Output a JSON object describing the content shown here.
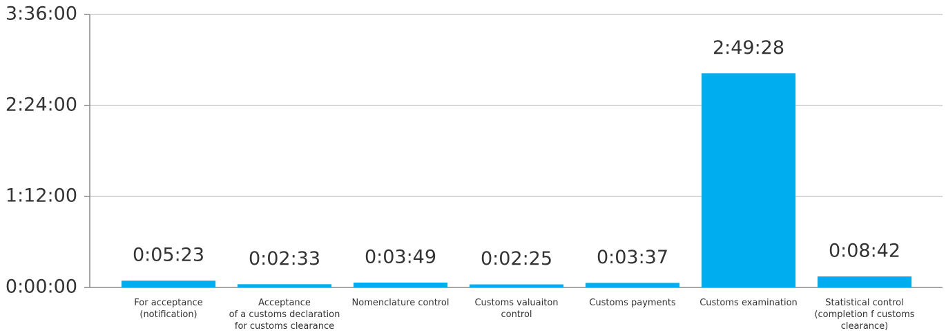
{
  "chart_data": {
    "type": "bar",
    "categories": [
      "For acceptance\n(notification)",
      "Acceptance\nof a customs declaration\nfor customs clearance",
      "Nomenclature control",
      "Customs valuaiton\ncontrol",
      "Customs payments",
      "Customs examination",
      "Statistical control\n(completion f customs\nclearance)"
    ],
    "values": [
      323,
      153,
      229,
      145,
      217,
      10168,
      522
    ],
    "value_labels": [
      "0:05:23",
      "0:02:33",
      "0:03:49",
      "0:02:25",
      "0:03:37",
      "2:49:28",
      "0:08:42"
    ],
    "color": "#00aeef",
    "ylim": [
      0,
      12960
    ],
    "yticks": [
      {
        "value": 0,
        "label": "0:00:00"
      },
      {
        "value": 4320,
        "label": "1:12:00"
      },
      {
        "value": 8640,
        "label": "2:24:00"
      },
      {
        "value": 12960,
        "label": "3:36:00"
      }
    ],
    "grid": true
  }
}
